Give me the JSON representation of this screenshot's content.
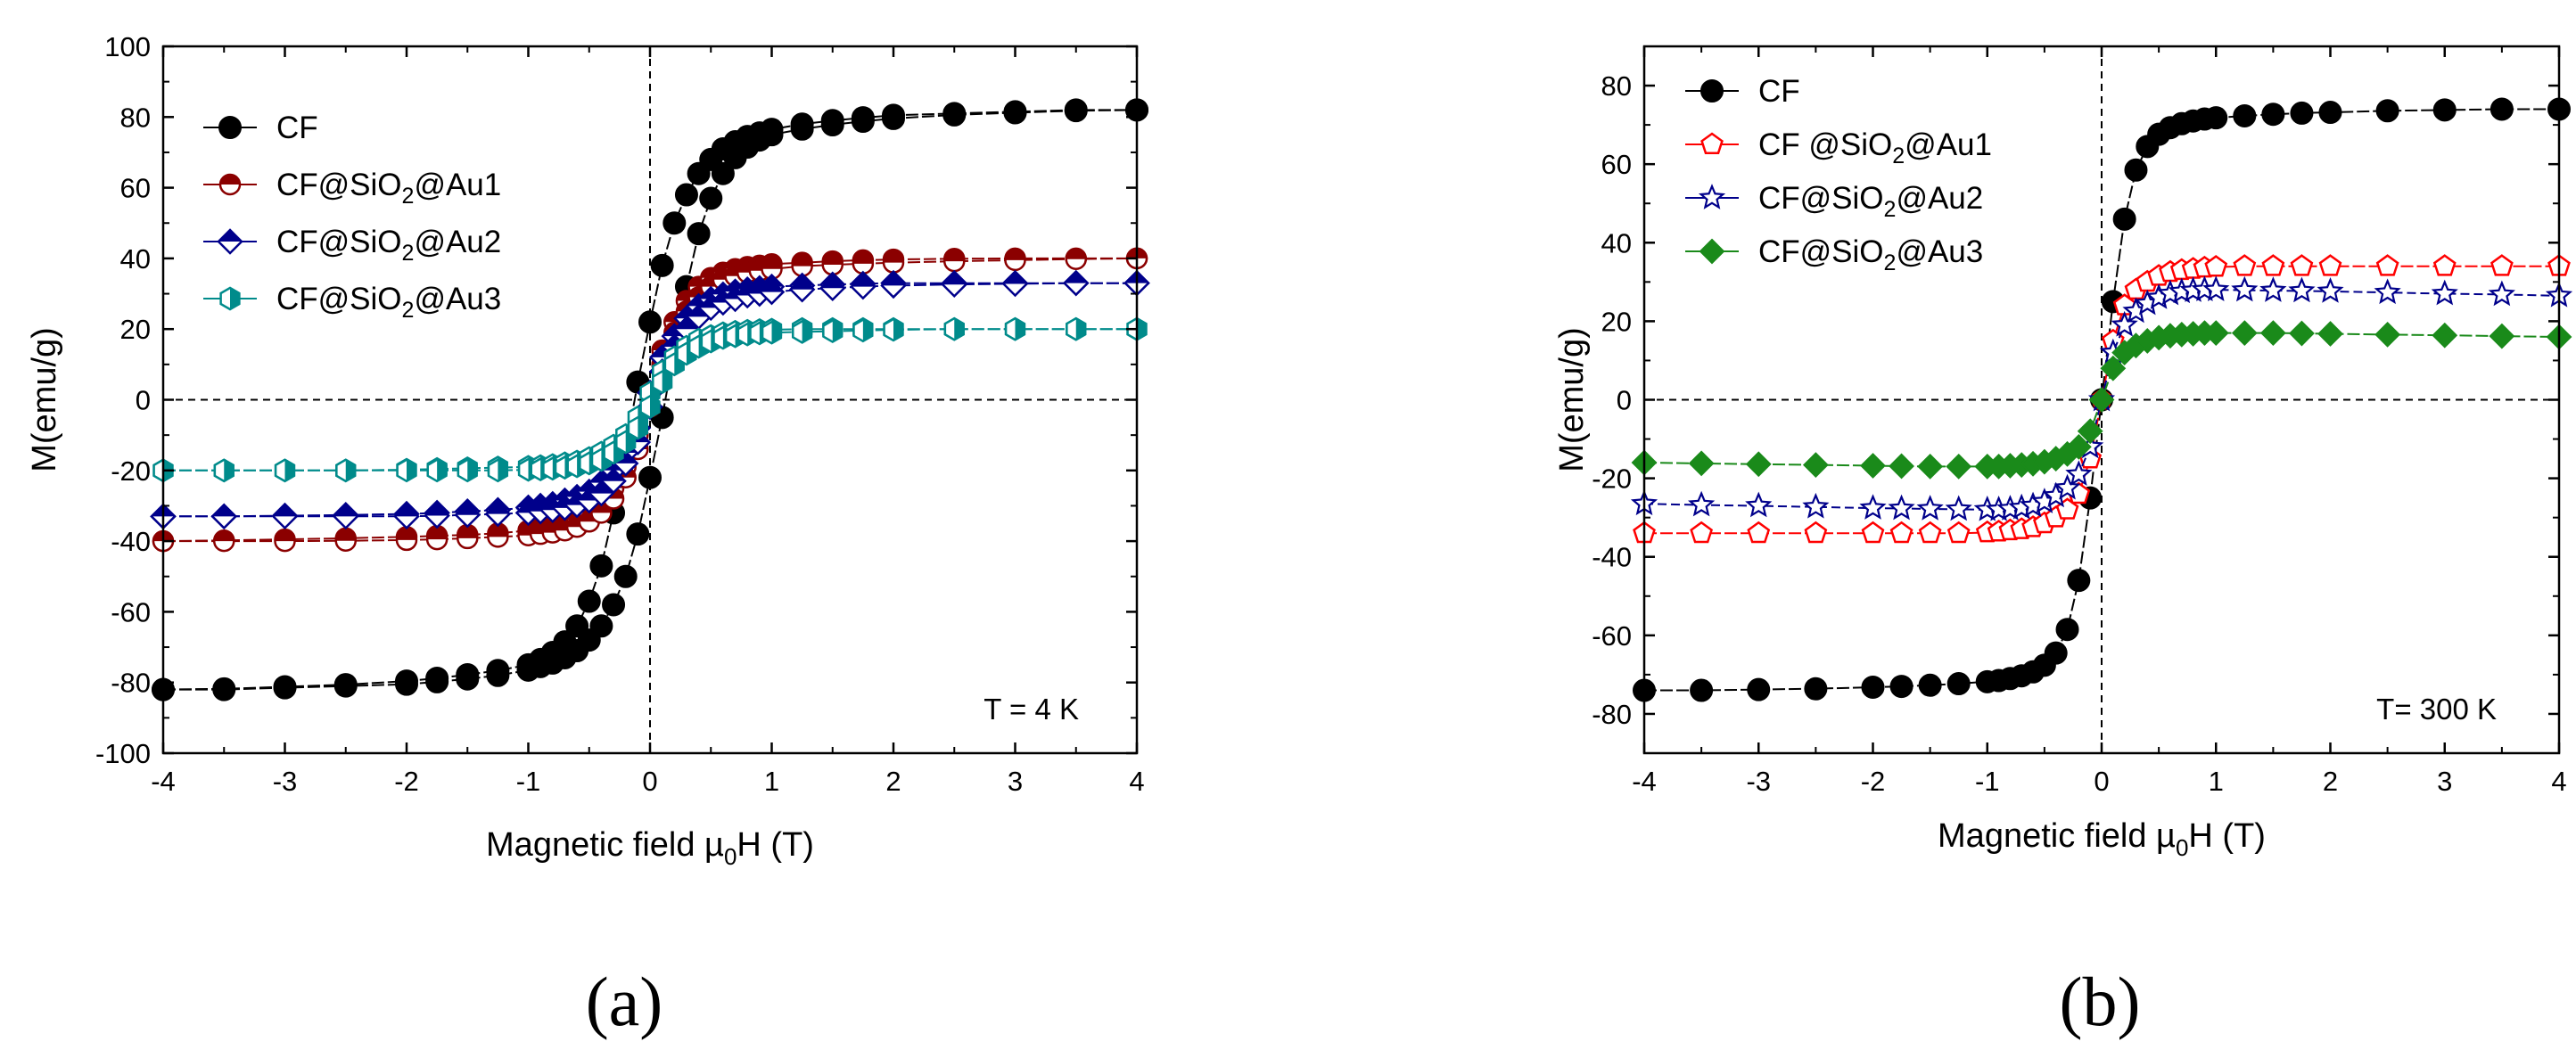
{
  "chart_data": [
    {
      "type": "scatter",
      "panel_label": "(a)",
      "xlabel": {
        "main": "Magnetic field µ",
        "sub": "0",
        "tail": "H (T)"
      },
      "ylabel": "M(emu/g)",
      "xlim": [
        -4,
        4
      ],
      "ylim": [
        -100,
        100
      ],
      "xticks": [
        "-4",
        "-3",
        "-2",
        "-1",
        "0",
        "1",
        "2",
        "3",
        "4"
      ],
      "yticks": [
        "-100",
        "-80",
        "-60",
        "-40",
        "-20",
        "0",
        "20",
        "40",
        "60",
        "80",
        "100"
      ],
      "annotation": "T = 4 K",
      "legend_position": "top-left",
      "series": [
        {
          "name": {
            "pre": "CF"
          },
          "marker": "circle-filled",
          "color": "#000000",
          "hc": 0.35,
          "ms": 82,
          "k": 1.3,
          "x": [
            -4,
            -3.5,
            -3,
            -2.5,
            -2,
            -1.75,
            -1.5,
            -1.25,
            -1,
            -0.9,
            -0.8,
            -0.7,
            -0.6,
            -0.5,
            -0.4,
            -0.3,
            -0.2,
            -0.1,
            0,
            0.1,
            0.2,
            0.3,
            0.4,
            0.5,
            0.6,
            0.7,
            0.8,
            0.9,
            1,
            1.25,
            1.5,
            1.75,
            2,
            2.5,
            3,
            3.5,
            4
          ],
          "desc": [
            -82,
            -81.8,
            -81.2,
            -80.6,
            -79.6,
            -78.8,
            -77.8,
            -76.6,
            -75,
            -73.5,
            -71.5,
            -68.5,
            -64,
            -57,
            -47,
            -32,
            -14,
            5,
            22,
            38,
            50,
            58,
            64,
            68,
            71,
            73,
            74.5,
            75.5,
            76.5,
            78,
            79,
            79.8,
            80.5,
            81,
            81.5,
            82,
            82
          ],
          "asc": [
            -82,
            -82,
            -81.5,
            -81,
            -80.5,
            -79.8,
            -79,
            -78,
            -76.5,
            -75.5,
            -74.5,
            -73,
            -71,
            -68,
            -64,
            -58,
            -50,
            -38,
            -22,
            -5,
            14,
            32,
            47,
            57,
            64,
            68.5,
            71.5,
            73.5,
            75,
            76.6,
            77.8,
            78.8,
            79.6,
            80.6,
            81.2,
            81.8,
            82
          ]
        },
        {
          "name": {
            "pre": "CF@SiO",
            "sub": "2",
            "post": "@Au1"
          },
          "marker": "circle-half-top",
          "color": "#8b0000",
          "hc": 0.08,
          "ms": 40,
          "k": 2.0,
          "x": [
            -4,
            -3.5,
            -3,
            -2.5,
            -2,
            -1.75,
            -1.5,
            -1.25,
            -1,
            -0.9,
            -0.8,
            -0.7,
            -0.6,
            -0.5,
            -0.4,
            -0.3,
            -0.2,
            -0.1,
            0,
            0.1,
            0.2,
            0.3,
            0.4,
            0.5,
            0.6,
            0.7,
            0.8,
            0.9,
            1,
            1.25,
            1.5,
            1.75,
            2,
            2.5,
            3,
            3.5,
            4
          ],
          "desc": [
            -40,
            -39.8,
            -39.5,
            -39.2,
            -38.8,
            -38.5,
            -38.2,
            -37.8,
            -37,
            -36.5,
            -36,
            -35,
            -34,
            -32,
            -29,
            -25,
            -19,
            -10,
            2,
            14,
            22,
            28,
            32,
            34.5,
            36,
            37,
            37.6,
            38,
            38.4,
            38.8,
            39.2,
            39.5,
            39.7,
            39.9,
            40,
            40,
            40
          ],
          "asc": [
            -40,
            -40,
            -40,
            -39.9,
            -39.7,
            -39.5,
            -39.2,
            -38.8,
            -38.4,
            -38,
            -37.6,
            -37,
            -36,
            -34.5,
            -32,
            -28,
            -22,
            -14,
            -2,
            10,
            19,
            25,
            29,
            32,
            34,
            35,
            36,
            36.5,
            37,
            37.8,
            38.2,
            38.5,
            38.8,
            39.2,
            39.5,
            39.8,
            40
          ]
        },
        {
          "name": {
            "pre": "CF@SiO",
            "sub": "2",
            "post": "@Au2"
          },
          "marker": "diamond-half",
          "color": "#00008b",
          "hc": 0.08,
          "ms": 33,
          "k": 2.0,
          "x": [
            -4,
            -3.5,
            -3,
            -2.5,
            -2,
            -1.75,
            -1.5,
            -1.25,
            -1,
            -0.9,
            -0.8,
            -0.7,
            -0.6,
            -0.5,
            -0.4,
            -0.3,
            -0.2,
            -0.1,
            0,
            0.1,
            0.2,
            0.3,
            0.4,
            0.5,
            0.6,
            0.7,
            0.8,
            0.9,
            1,
            1.25,
            1.5,
            1.75,
            2,
            2.5,
            3,
            3.5,
            4
          ],
          "desc": [
            -33,
            -33,
            -32.8,
            -32.6,
            -32.3,
            -32,
            -31.6,
            -31.2,
            -30.5,
            -30,
            -29.5,
            -28.5,
            -27.5,
            -26,
            -23.5,
            -20,
            -15,
            -8,
            2,
            12,
            18,
            23,
            26.5,
            28.5,
            29.8,
            30.6,
            31.2,
            31.6,
            32,
            32.3,
            32.6,
            32.8,
            33,
            33,
            33,
            33,
            33
          ],
          "asc": [
            -33,
            -33,
            -33,
            -33,
            -33,
            -32.8,
            -32.6,
            -32.3,
            -32,
            -31.6,
            -31.2,
            -30.6,
            -29.8,
            -28.5,
            -26.5,
            -23,
            -18,
            -12,
            -2,
            8,
            15,
            20,
            23.5,
            26,
            27.5,
            28.5,
            29.5,
            30,
            30.5,
            31.2,
            31.6,
            32,
            32.3,
            32.6,
            32.8,
            33,
            33
          ]
        },
        {
          "name": {
            "pre": "CF@SiO",
            "sub": "2",
            "post": "@Au3"
          },
          "marker": "hexagon-half",
          "color": "#008b8b",
          "hc": 0.05,
          "ms": 20,
          "k": 2.5,
          "x": [
            -4,
            -3.5,
            -3,
            -2.5,
            -2,
            -1.75,
            -1.5,
            -1.25,
            -1,
            -0.9,
            -0.8,
            -0.7,
            -0.6,
            -0.5,
            -0.4,
            -0.3,
            -0.2,
            -0.1,
            0,
            0.1,
            0.2,
            0.3,
            0.4,
            0.5,
            0.6,
            0.7,
            0.8,
            0.9,
            1,
            1.25,
            1.5,
            1.75,
            2,
            2.5,
            3,
            3.5,
            4
          ],
          "desc": [
            -20,
            -20,
            -20,
            -20,
            -19.8,
            -19.6,
            -19.4,
            -19.2,
            -19,
            -18.8,
            -18.5,
            -18,
            -17.5,
            -16.5,
            -15,
            -13,
            -10,
            -5,
            2,
            8,
            12,
            15,
            17,
            18,
            18.8,
            19.2,
            19.5,
            19.7,
            19.8,
            20,
            20,
            20,
            20,
            20,
            20,
            20,
            20
          ],
          "asc": [
            -20,
            -20,
            -20,
            -20,
            -20,
            -20,
            -20,
            -20,
            -19.8,
            -19.7,
            -19.5,
            -19.2,
            -18.8,
            -18,
            -17,
            -15,
            -12,
            -8,
            -2,
            5,
            10,
            13,
            15,
            16.5,
            17.5,
            18,
            18.5,
            18.8,
            19,
            19.2,
            19.4,
            19.6,
            19.8,
            20,
            20,
            20,
            20
          ]
        }
      ]
    },
    {
      "type": "scatter",
      "panel_label": "(b)",
      "xlabel": {
        "main": "Magnetic field µ",
        "sub": "0",
        "tail": "H (T)"
      },
      "ylabel": "M(emu/g)",
      "xlim": [
        -4,
        4
      ],
      "ylim": [
        -90,
        90
      ],
      "xticks": [
        "-4",
        "-3",
        "-2",
        "-1",
        "0",
        "1",
        "2",
        "3",
        "4"
      ],
      "yticks": [
        "-80",
        "-60",
        "-40",
        "-20",
        "0",
        "20",
        "40",
        "60",
        "80"
      ],
      "annotation": "T= 300 K",
      "legend_position": "top-left",
      "series": [
        {
          "name": {
            "pre": "CF"
          },
          "marker": "circle-filled",
          "color": "#000000",
          "x": [
            -4,
            -3.5,
            -3,
            -2.5,
            -2,
            -1.75,
            -1.5,
            -1.25,
            -1,
            -0.9,
            -0.8,
            -0.7,
            -0.6,
            -0.5,
            -0.4,
            -0.3,
            -0.2,
            -0.1,
            0,
            0.1,
            0.2,
            0.3,
            0.4,
            0.5,
            0.6,
            0.7,
            0.8,
            0.9,
            1,
            1.25,
            1.5,
            1.75,
            2,
            2.5,
            3,
            3.5,
            4
          ],
          "y": [
            -74,
            -74,
            -73.8,
            -73.6,
            -73.2,
            -73,
            -72.7,
            -72.3,
            -71.8,
            -71.5,
            -71,
            -70.3,
            -69.3,
            -67.6,
            -64.5,
            -58.5,
            -46,
            -25,
            0,
            25,
            46,
            58.5,
            64.5,
            67.6,
            69.3,
            70.3,
            71,
            71.5,
            71.8,
            72.3,
            72.7,
            73,
            73.2,
            73.6,
            73.8,
            74,
            74
          ]
        },
        {
          "name": {
            "pre": "CF @SiO",
            "sub": "2",
            "post": "@Au1"
          },
          "marker": "pentagon-open",
          "color": "#ff0000",
          "x": [
            -4,
            -3.5,
            -3,
            -2.5,
            -2,
            -1.75,
            -1.5,
            -1.25,
            -1,
            -0.9,
            -0.8,
            -0.7,
            -0.6,
            -0.5,
            -0.4,
            -0.3,
            -0.2,
            -0.1,
            0,
            0.1,
            0.2,
            0.3,
            0.4,
            0.5,
            0.6,
            0.7,
            0.8,
            0.9,
            1,
            1.25,
            1.5,
            1.75,
            2,
            2.5,
            3,
            3.5,
            4
          ],
          "y": [
            -34,
            -34,
            -34,
            -34,
            -34,
            -34,
            -34,
            -34,
            -33.8,
            -33.6,
            -33.3,
            -33,
            -32.5,
            -31.5,
            -30,
            -28,
            -24,
            -15,
            0,
            15,
            24,
            28,
            30,
            31.5,
            32.5,
            33,
            33.3,
            33.6,
            33.8,
            34,
            34,
            34,
            34,
            34,
            34,
            34,
            34
          ]
        },
        {
          "name": {
            "pre": "CF@SiO",
            "sub": "2",
            "post": "@Au2"
          },
          "marker": "star-open",
          "color": "#00008b",
          "x": [
            -4,
            -3.5,
            -3,
            -2.5,
            -2,
            -1.75,
            -1.5,
            -1.25,
            -1,
            -0.9,
            -0.8,
            -0.7,
            -0.6,
            -0.5,
            -0.4,
            -0.3,
            -0.2,
            -0.1,
            0,
            0.1,
            0.2,
            0.3,
            0.4,
            0.5,
            0.6,
            0.7,
            0.8,
            0.9,
            1,
            1.25,
            1.5,
            1.75,
            2,
            2.5,
            3,
            3.5,
            4
          ],
          "y": [
            -26.5,
            -26.8,
            -27,
            -27.3,
            -27.6,
            -27.7,
            -27.8,
            -27.9,
            -28,
            -28,
            -27.8,
            -27.5,
            -27,
            -26,
            -24.5,
            -22.5,
            -19,
            -12,
            0,
            12,
            19,
            22.5,
            24.5,
            26,
            27,
            27.5,
            27.8,
            28,
            28,
            27.9,
            27.8,
            27.7,
            27.6,
            27.3,
            27,
            26.8,
            26.5
          ]
        },
        {
          "name": {
            "pre": "CF@SiO",
            "sub": "2",
            "post": "@Au3"
          },
          "marker": "diamond-filled",
          "color": "#1a8a1a",
          "x": [
            -4,
            -3.5,
            -3,
            -2.5,
            -2,
            -1.75,
            -1.5,
            -1.25,
            -1,
            -0.9,
            -0.8,
            -0.7,
            -0.6,
            -0.5,
            -0.4,
            -0.3,
            -0.2,
            -0.1,
            0,
            0.1,
            0.2,
            0.3,
            0.4,
            0.5,
            0.6,
            0.7,
            0.8,
            0.9,
            1,
            1.25,
            1.5,
            1.75,
            2,
            2.5,
            3,
            3.5,
            4
          ],
          "y": [
            -16,
            -16.2,
            -16.4,
            -16.6,
            -16.8,
            -16.9,
            -17,
            -17,
            -17,
            -17,
            -16.8,
            -16.6,
            -16.3,
            -15.8,
            -15,
            -13.8,
            -12,
            -8,
            0,
            8,
            12,
            13.8,
            15,
            15.8,
            16.3,
            16.6,
            16.8,
            17,
            17,
            17,
            17,
            16.9,
            16.8,
            16.6,
            16.4,
            16.2,
            16
          ]
        }
      ]
    }
  ]
}
